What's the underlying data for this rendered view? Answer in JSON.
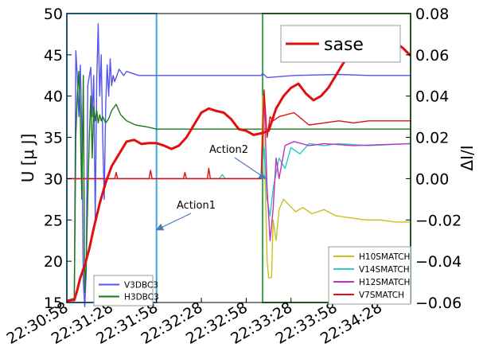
{
  "chart_data": {
    "type": "line",
    "y_axes": {
      "left": {
        "label": "U [μ J]",
        "ylim": [
          15,
          50
        ],
        "ticks": [
          "15",
          "20",
          "25",
          "30",
          "35",
          "40",
          "45",
          "50"
        ]
      },
      "right": {
        "label": "ΔI/I",
        "ylim": [
          -0.06,
          0.08
        ],
        "ticks": [
          "−0.06",
          "−0.04",
          "−0.02",
          "0.00",
          "0.02",
          "0.04",
          "0.06",
          "0.08"
        ]
      }
    },
    "x_axis": {
      "range": [
        "22:30:58",
        "22:34:48"
      ],
      "ticks": [
        "22:30:58",
        "22:31:28",
        "22:31:58",
        "22:32:28",
        "22:32:58",
        "22:33:28",
        "22:33:58",
        "22:34:28"
      ]
    },
    "grid": false,
    "legends": [
      {
        "placement": "lower-left",
        "entries": [
          {
            "name": "V3DBC3",
            "color": "#5555ee"
          },
          {
            "name": "H3DBC3",
            "color": "#1a7a1a"
          }
        ]
      },
      {
        "placement": "lower-right",
        "entries": [
          {
            "name": "H10SMATCH",
            "color": "#c8c020"
          },
          {
            "name": "V14SMATCH",
            "color": "#30c8c8"
          },
          {
            "name": "H12SMATCH",
            "color": "#c030c0"
          },
          {
            "name": "V7SMATCH",
            "color": "#e01010"
          }
        ]
      },
      {
        "placement": "top-right",
        "entries": [
          {
            "name": "sase",
            "color": "#e01010"
          }
        ]
      }
    ],
    "annotations": [
      {
        "text": "Action1",
        "arrow_to": {
          "x": "22:31:58",
          "y": 23.8
        }
      },
      {
        "text": "Action2",
        "arrow_to": {
          "x": "22:33:11",
          "y": 30.0
        }
      }
    ],
    "regions": [
      {
        "name": "action1-region",
        "x0": "22:30:58",
        "x1": "22:31:58",
        "color": "#3aaad8"
      },
      {
        "name": "action2-region",
        "x0": "22:33:09",
        "x1": "22:34:48",
        "color": "#3aa84a"
      }
    ],
    "series": [
      {
        "name": "sase",
        "axis": "left",
        "color": "#e01010",
        "points": [
          [
            "22:30:58",
            15.2
          ],
          [
            "22:31:03",
            15.3
          ],
          [
            "22:31:05",
            16.5
          ],
          [
            "22:31:07",
            18.0
          ],
          [
            "22:31:10",
            19.5
          ],
          [
            "22:31:13",
            21.5
          ],
          [
            "22:31:16",
            24.0
          ],
          [
            "22:31:20",
            27.0
          ],
          [
            "22:31:24",
            29.5
          ],
          [
            "22:31:28",
            31.5
          ],
          [
            "22:31:33",
            33.0
          ],
          [
            "22:31:38",
            34.5
          ],
          [
            "22:31:43",
            34.7
          ],
          [
            "22:31:48",
            34.2
          ],
          [
            "22:31:53",
            34.3
          ],
          [
            "22:31:58",
            34.3
          ],
          [
            "22:32:03",
            34.0
          ],
          [
            "22:32:08",
            33.6
          ],
          [
            "22:32:13",
            34.0
          ],
          [
            "22:32:18",
            35.0
          ],
          [
            "22:32:23",
            36.5
          ],
          [
            "22:32:28",
            38.0
          ],
          [
            "22:32:33",
            38.5
          ],
          [
            "22:32:38",
            38.2
          ],
          [
            "22:32:43",
            38.0
          ],
          [
            "22:32:48",
            37.2
          ],
          [
            "22:32:53",
            36.0
          ],
          [
            "22:32:58",
            35.8
          ],
          [
            "22:33:03",
            35.3
          ],
          [
            "22:33:08",
            35.5
          ],
          [
            "22:33:13",
            35.8
          ],
          [
            "22:33:18",
            38.5
          ],
          [
            "22:33:23",
            40.0
          ],
          [
            "22:33:28",
            41.0
          ],
          [
            "22:33:33",
            41.5
          ],
          [
            "22:33:38",
            40.3
          ],
          [
            "22:33:43",
            39.5
          ],
          [
            "22:33:48",
            40.0
          ],
          [
            "22:33:53",
            41.0
          ],
          [
            "22:33:58",
            42.5
          ],
          [
            "22:34:03",
            44.0
          ],
          [
            "22:34:08",
            45.0
          ],
          [
            "22:34:13",
            45.5
          ],
          [
            "22:34:18",
            45.8
          ],
          [
            "22:34:23",
            45.3
          ],
          [
            "22:34:28",
            45.6
          ],
          [
            "22:34:33",
            46.0
          ],
          [
            "22:34:38",
            46.5
          ],
          [
            "22:34:43",
            45.8
          ],
          [
            "22:34:48",
            44.9
          ]
        ]
      },
      {
        "name": "V3DBC3",
        "axis": "right",
        "color": "#5555ee",
        "points": [
          [
            "22:30:58",
            -0.059
          ],
          [
            "22:31:03",
            -0.058
          ],
          [
            "22:31:04",
            0.062
          ],
          [
            "22:31:05",
            0.05
          ],
          [
            "22:31:06",
            0.03
          ],
          [
            "22:31:07",
            0.055
          ],
          [
            "22:31:08",
            0.025
          ],
          [
            "22:31:09",
            -0.05
          ],
          [
            "22:31:10",
            -0.062
          ],
          [
            "22:31:11",
            -0.045
          ],
          [
            "22:31:12",
            0.045
          ],
          [
            "22:31:14",
            0.054
          ],
          [
            "22:31:15",
            0.03
          ],
          [
            "22:31:16",
            0.05
          ],
          [
            "22:31:17",
            -0.02
          ],
          [
            "22:31:18",
            0.048
          ],
          [
            "22:31:19",
            0.075
          ],
          [
            "22:31:20",
            0.04
          ],
          [
            "22:31:21",
            0.06
          ],
          [
            "22:31:22",
            0.02
          ],
          [
            "22:31:23",
            -0.01
          ],
          [
            "22:31:24",
            0.035
          ],
          [
            "22:31:25",
            0.055
          ],
          [
            "22:31:26",
            0.04
          ],
          [
            "22:31:27",
            0.058
          ],
          [
            "22:31:28",
            0.045
          ],
          [
            "22:31:29",
            0.05
          ],
          [
            "22:31:30",
            0.047
          ],
          [
            "22:31:33",
            0.053
          ],
          [
            "22:31:36",
            0.05
          ],
          [
            "22:31:38",
            0.052
          ],
          [
            "22:31:42",
            0.051
          ],
          [
            "22:31:46",
            0.05
          ],
          [
            "22:31:52",
            0.05
          ],
          [
            "22:31:58",
            0.05
          ],
          [
            "22:32:30",
            0.05
          ],
          [
            "22:33:00",
            0.05
          ],
          [
            "22:33:08",
            0.05
          ],
          [
            "22:33:09",
            0.051
          ],
          [
            "22:33:12",
            0.049
          ],
          [
            "22:33:30",
            0.05
          ],
          [
            "22:34:00",
            0.0505
          ],
          [
            "22:34:20",
            0.05
          ],
          [
            "22:34:48",
            0.05
          ]
        ]
      },
      {
        "name": "H3DBC3",
        "axis": "right",
        "color": "#1a7a1a",
        "points": [
          [
            "22:30:58",
            -0.059
          ],
          [
            "22:31:03",
            -0.058
          ],
          [
            "22:31:04",
            0.02
          ],
          [
            "22:31:05",
            0.04
          ],
          [
            "22:31:06",
            0.052
          ],
          [
            "22:31:07",
            0.03
          ],
          [
            "22:31:08",
            -0.01
          ],
          [
            "22:31:09",
            0.05
          ],
          [
            "22:31:10",
            -0.055
          ],
          [
            "22:31:11",
            -0.04
          ],
          [
            "22:31:12",
            -0.01
          ],
          [
            "22:31:13",
            0.02
          ],
          [
            "22:31:14",
            0.04
          ],
          [
            "22:31:15",
            0.01
          ],
          [
            "22:31:16",
            0.035
          ],
          [
            "22:31:17",
            0.028
          ],
          [
            "22:31:18",
            0.033
          ],
          [
            "22:31:19",
            0.027
          ],
          [
            "22:31:20",
            0.031
          ],
          [
            "22:31:21",
            0.028
          ],
          [
            "22:31:22",
            0.03
          ],
          [
            "22:31:24",
            0.027
          ],
          [
            "22:31:26",
            0.029
          ],
          [
            "22:31:28",
            0.033
          ],
          [
            "22:31:31",
            0.036
          ],
          [
            "22:31:34",
            0.031
          ],
          [
            "22:31:38",
            0.028
          ],
          [
            "22:31:44",
            0.026
          ],
          [
            "22:31:52",
            0.025
          ],
          [
            "22:31:58",
            0.024
          ],
          [
            "22:33:09",
            0.024
          ],
          [
            "22:34:48",
            0.024
          ]
        ]
      },
      {
        "name": "H10SMATCH",
        "axis": "right",
        "color": "#c8c020",
        "points": [
          [
            "22:30:58",
            0.0
          ],
          [
            "22:33:08",
            0.0
          ],
          [
            "22:33:09",
            0.04
          ],
          [
            "22:33:11",
            -0.01
          ],
          [
            "22:33:12",
            -0.04
          ],
          [
            "22:33:13",
            -0.048
          ],
          [
            "22:33:15",
            -0.048
          ],
          [
            "22:33:16",
            -0.02
          ],
          [
            "22:33:18",
            -0.03
          ],
          [
            "22:33:20",
            -0.015
          ],
          [
            "22:33:23",
            -0.01
          ],
          [
            "22:33:27",
            -0.013
          ],
          [
            "22:33:31",
            -0.016
          ],
          [
            "22:33:36",
            -0.014
          ],
          [
            "22:33:42",
            -0.017
          ],
          [
            "22:33:50",
            -0.015
          ],
          [
            "22:33:58",
            -0.018
          ],
          [
            "22:34:08",
            -0.019
          ],
          [
            "22:34:18",
            -0.02
          ],
          [
            "22:34:28",
            -0.02
          ],
          [
            "22:34:38",
            -0.021
          ],
          [
            "22:34:48",
            -0.021
          ]
        ]
      },
      {
        "name": "V14SMATCH",
        "axis": "right",
        "color": "#30c8c8",
        "points": [
          [
            "22:30:58",
            0.0
          ],
          [
            "22:32:40",
            0.0
          ],
          [
            "22:32:42",
            0.002
          ],
          [
            "22:32:44",
            0.0
          ],
          [
            "22:33:08",
            0.0
          ],
          [
            "22:33:10",
            0.015
          ],
          [
            "22:33:12",
            -0.01
          ],
          [
            "22:33:14",
            -0.018
          ],
          [
            "22:33:16",
            -0.005
          ],
          [
            "22:33:20",
            0.01
          ],
          [
            "22:33:24",
            0.005
          ],
          [
            "22:33:28",
            0.015
          ],
          [
            "22:33:34",
            0.012
          ],
          [
            "22:33:40",
            0.017
          ],
          [
            "22:33:50",
            0.016
          ],
          [
            "22:34:00",
            0.017
          ],
          [
            "22:34:20",
            0.016
          ],
          [
            "22:34:48",
            0.017
          ]
        ]
      },
      {
        "name": "H12SMATCH",
        "axis": "right",
        "color": "#c030c0",
        "points": [
          [
            "22:30:58",
            0.0
          ],
          [
            "22:33:08",
            0.0
          ],
          [
            "22:33:10",
            0.04
          ],
          [
            "22:33:12",
            -0.005
          ],
          [
            "22:33:14",
            -0.03
          ],
          [
            "22:33:16",
            -0.015
          ],
          [
            "22:33:18",
            0.01
          ],
          [
            "22:33:20",
            0.0
          ],
          [
            "22:33:24",
            0.016
          ],
          [
            "22:33:30",
            0.018
          ],
          [
            "22:33:40",
            0.016
          ],
          [
            "22:33:50",
            0.017
          ],
          [
            "22:34:10",
            0.016
          ],
          [
            "22:34:48",
            0.017
          ]
        ]
      },
      {
        "name": "V7SMATCH",
        "axis": "right",
        "color": "#e01010",
        "points": [
          [
            "22:30:58",
            0.0
          ],
          [
            "22:31:30",
            0.0
          ],
          [
            "22:31:31",
            0.003
          ],
          [
            "22:31:32",
            0.0
          ],
          [
            "22:31:53",
            0.0
          ],
          [
            "22:31:54",
            0.004
          ],
          [
            "22:31:55",
            0.0
          ],
          [
            "22:32:16",
            0.0
          ],
          [
            "22:32:17",
            0.003
          ],
          [
            "22:32:18",
            0.0
          ],
          [
            "22:32:32",
            0.0
          ],
          [
            "22:32:33",
            0.005
          ],
          [
            "22:32:34",
            0.0
          ],
          [
            "22:33:08",
            0.0
          ],
          [
            "22:33:10",
            0.043
          ],
          [
            "22:33:12",
            0.02
          ],
          [
            "22:33:14",
            0.03
          ],
          [
            "22:33:16",
            0.028
          ],
          [
            "22:33:20",
            0.03
          ],
          [
            "22:33:30",
            0.032
          ],
          [
            "22:33:40",
            0.026
          ],
          [
            "22:33:50",
            0.027
          ],
          [
            "22:34:00",
            0.028
          ],
          [
            "22:34:10",
            0.027
          ],
          [
            "22:34:20",
            0.028
          ],
          [
            "22:34:48",
            0.028
          ]
        ]
      }
    ]
  }
}
